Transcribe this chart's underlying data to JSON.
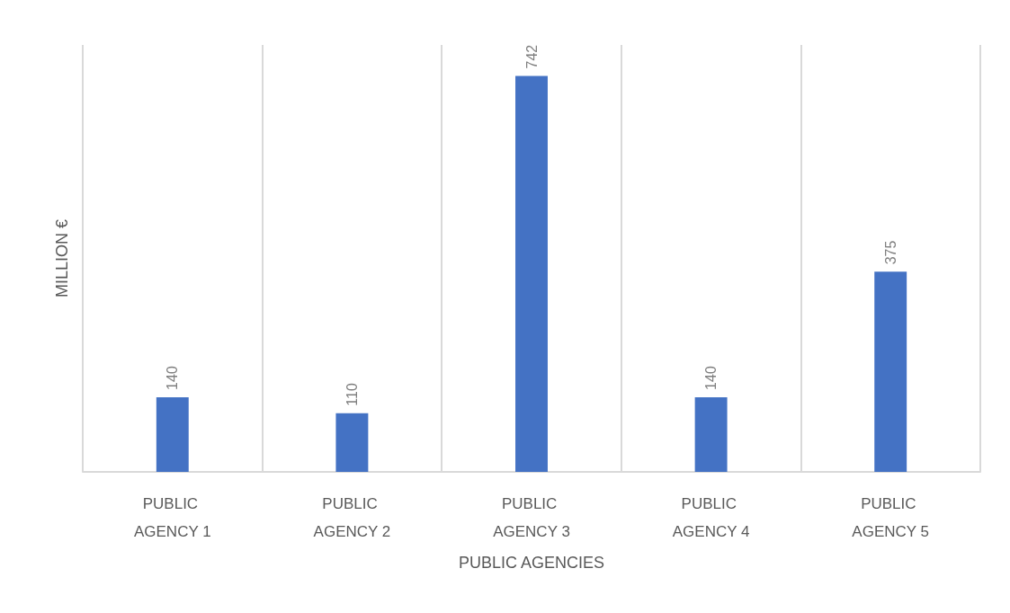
{
  "chart_data": {
    "type": "bar",
    "xlabel": "PUBLIC AGENCIES",
    "ylabel": "MILLION €",
    "categories": [
      "PUBLIC AGENCY 1",
      "PUBLIC AGENCY 2",
      "PUBLIC AGENCY 3",
      "PUBLIC AGENCY 4",
      "PUBLIC AGENCY 5"
    ],
    "values": [
      140,
      110,
      742,
      140,
      375
    ],
    "color": "#4472c4",
    "data_labels": true,
    "grid": "x"
  }
}
